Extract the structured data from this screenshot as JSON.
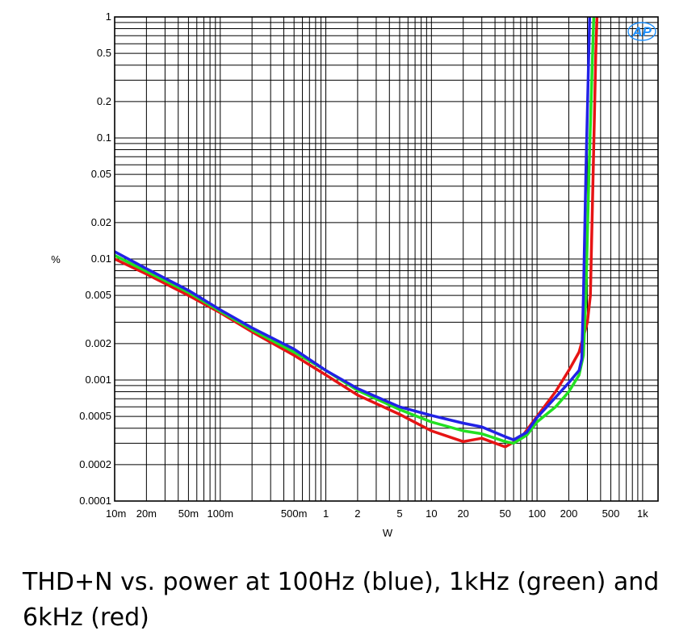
{
  "caption": "THD+N vs. power at 100Hz (blue), 1kHz (green) and 6kHz (red)",
  "logo": {
    "text": "AP",
    "color": "#1e90ff"
  },
  "chart_data": {
    "type": "line",
    "xlabel": "W",
    "ylabel": "%",
    "x_scale": "log",
    "y_scale": "log",
    "xlim": [
      0.01,
      1400
    ],
    "ylim": [
      0.0001,
      1
    ],
    "grid": true,
    "x_ticks": [
      {
        "value": 0.01,
        "label": "10m"
      },
      {
        "value": 0.02,
        "label": "20m"
      },
      {
        "value": 0.05,
        "label": "50m"
      },
      {
        "value": 0.1,
        "label": "100m"
      },
      {
        "value": 0.5,
        "label": "500m"
      },
      {
        "value": 1,
        "label": "1"
      },
      {
        "value": 2,
        "label": "2"
      },
      {
        "value": 5,
        "label": "5"
      },
      {
        "value": 10,
        "label": "10"
      },
      {
        "value": 20,
        "label": "20"
      },
      {
        "value": 50,
        "label": "50"
      },
      {
        "value": 100,
        "label": "100"
      },
      {
        "value": 200,
        "label": "200"
      },
      {
        "value": 500,
        "label": "500"
      },
      {
        "value": 1000,
        "label": "1k"
      }
    ],
    "y_ticks": [
      {
        "value": 0.0001,
        "label": "0.0001"
      },
      {
        "value": 0.0002,
        "label": "0.0002"
      },
      {
        "value": 0.0005,
        "label": "0.0005"
      },
      {
        "value": 0.001,
        "label": "0.001"
      },
      {
        "value": 0.002,
        "label": "0.002"
      },
      {
        "value": 0.005,
        "label": "0.005"
      },
      {
        "value": 0.01,
        "label": "0.01"
      },
      {
        "value": 0.02,
        "label": "0.02"
      },
      {
        "value": 0.05,
        "label": "0.05"
      },
      {
        "value": 0.1,
        "label": "0.1"
      },
      {
        "value": 0.2,
        "label": "0.2"
      },
      {
        "value": 0.5,
        "label": "0.5"
      },
      {
        "value": 1,
        "label": "1"
      }
    ],
    "series": [
      {
        "color": "#e61414",
        "points": [
          [
            0.01,
            0.01
          ],
          [
            0.02,
            0.0075
          ],
          [
            0.05,
            0.005
          ],
          [
            0.1,
            0.0036
          ],
          [
            0.2,
            0.0025
          ],
          [
            0.5,
            0.0016
          ],
          [
            1,
            0.0011
          ],
          [
            2,
            0.00075
          ],
          [
            5,
            0.00052
          ],
          [
            10,
            0.00038
          ],
          [
            20,
            0.00031
          ],
          [
            30,
            0.00033
          ],
          [
            50,
            0.00028
          ],
          [
            70,
            0.00033
          ],
          [
            100,
            0.0005
          ],
          [
            150,
            0.0008
          ],
          [
            200,
            0.0012
          ],
          [
            250,
            0.0017
          ],
          [
            300,
            0.003
          ],
          [
            320,
            0.005
          ],
          [
            340,
            0.05
          ],
          [
            360,
            0.5
          ],
          [
            370,
            1
          ]
        ]
      },
      {
        "color": "#22e022",
        "points": [
          [
            0.01,
            0.0107
          ],
          [
            0.02,
            0.0079
          ],
          [
            0.05,
            0.0053
          ],
          [
            0.1,
            0.0037
          ],
          [
            0.2,
            0.0026
          ],
          [
            0.5,
            0.0017
          ],
          [
            1,
            0.0012
          ],
          [
            2,
            0.00082
          ],
          [
            5,
            0.00057
          ],
          [
            10,
            0.00045
          ],
          [
            20,
            0.00038
          ],
          [
            30,
            0.00036
          ],
          [
            50,
            0.00031
          ],
          [
            60,
            0.0003
          ],
          [
            80,
            0.00035
          ],
          [
            100,
            0.00045
          ],
          [
            150,
            0.0006
          ],
          [
            200,
            0.0008
          ],
          [
            250,
            0.0011
          ],
          [
            275,
            0.0016
          ],
          [
            290,
            0.005
          ],
          [
            310,
            0.05
          ],
          [
            330,
            0.3
          ],
          [
            345,
            1
          ]
        ]
      },
      {
        "color": "#2222e6",
        "points": [
          [
            0.01,
            0.0115
          ],
          [
            0.02,
            0.0083
          ],
          [
            0.05,
            0.0055
          ],
          [
            0.1,
            0.0038
          ],
          [
            0.2,
            0.0027
          ],
          [
            0.5,
            0.0018
          ],
          [
            1,
            0.0012
          ],
          [
            2,
            0.00085
          ],
          [
            5,
            0.0006
          ],
          [
            10,
            0.00051
          ],
          [
            20,
            0.00044
          ],
          [
            30,
            0.00041
          ],
          [
            50,
            0.00034
          ],
          [
            60,
            0.00032
          ],
          [
            80,
            0.00037
          ],
          [
            100,
            0.00049
          ],
          [
            150,
            0.00072
          ],
          [
            200,
            0.00095
          ],
          [
            250,
            0.0012
          ],
          [
            265,
            0.0015
          ],
          [
            275,
            0.005
          ],
          [
            290,
            0.05
          ],
          [
            305,
            0.3
          ],
          [
            315,
            1
          ]
        ]
      }
    ]
  }
}
